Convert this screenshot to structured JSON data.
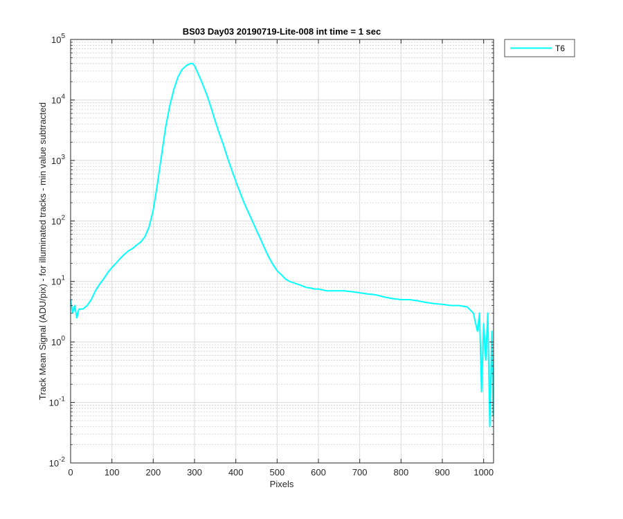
{
  "chart_data": {
    "type": "line",
    "title": "BS03 Day03 20190719-Lite-008 int time = 1 sec",
    "xlabel": "Pixels",
    "ylabel": "Track Mean Signal (ADU/pix) - for illuminated tracks - min value subtracted",
    "xlim": [
      0,
      1024
    ],
    "ylim": [
      0.01,
      100000
    ],
    "y_scale": "log",
    "x_ticks": [
      "0",
      "100",
      "200",
      "300",
      "400",
      "500",
      "600",
      "700",
      "800",
      "900",
      "1000"
    ],
    "y_ticks": [
      {
        "base": "10",
        "exp": "-2"
      },
      {
        "base": "10",
        "exp": "-1"
      },
      {
        "base": "10",
        "exp": "0"
      },
      {
        "base": "10",
        "exp": "1"
      },
      {
        "base": "10",
        "exp": "2"
      },
      {
        "base": "10",
        "exp": "3"
      },
      {
        "base": "10",
        "exp": "4"
      },
      {
        "base": "10",
        "exp": "5"
      }
    ],
    "grid": "major and minor",
    "legend_position": "outside top-right",
    "series": [
      {
        "name": "T6",
        "color": "#00FFFF",
        "x": [
          0,
          5,
          10,
          15,
          20,
          30,
          40,
          50,
          60,
          70,
          80,
          90,
          100,
          110,
          120,
          130,
          140,
          150,
          160,
          170,
          180,
          190,
          200,
          210,
          220,
          230,
          240,
          250,
          260,
          270,
          280,
          290,
          295,
          300,
          310,
          320,
          330,
          340,
          350,
          360,
          370,
          380,
          390,
          400,
          410,
          420,
          430,
          440,
          450,
          460,
          470,
          480,
          490,
          500,
          510,
          520,
          530,
          540,
          550,
          560,
          570,
          580,
          590,
          600,
          620,
          640,
          660,
          680,
          700,
          720,
          740,
          760,
          780,
          800,
          820,
          840,
          860,
          880,
          900,
          920,
          940,
          960,
          975,
          985,
          990,
          995,
          1000,
          1005,
          1010,
          1015,
          1020,
          1023
        ],
        "y": [
          5,
          3,
          4,
          2.5,
          3.5,
          3.5,
          4,
          5,
          7,
          9,
          11,
          14,
          17,
          20,
          24,
          28,
          32,
          35,
          40,
          45,
          55,
          80,
          150,
          400,
          1200,
          3500,
          8000,
          15000,
          24000,
          32000,
          37000,
          40000,
          40000,
          37000,
          26000,
          18000,
          12000,
          7500,
          4500,
          2800,
          1800,
          1100,
          700,
          450,
          300,
          200,
          140,
          100,
          70,
          50,
          35,
          25,
          19,
          15,
          13,
          11,
          10,
          9.5,
          9,
          8.5,
          8,
          7.8,
          7.5,
          7.5,
          7,
          7,
          7,
          6.8,
          6.5,
          6.2,
          6,
          5.5,
          5.2,
          5,
          5,
          4.8,
          4.5,
          4.3,
          4.2,
          4,
          4,
          3.8,
          3,
          1.5,
          3,
          0.15,
          2,
          0.5,
          3,
          0.04,
          1.5,
          0.06
        ]
      }
    ]
  }
}
